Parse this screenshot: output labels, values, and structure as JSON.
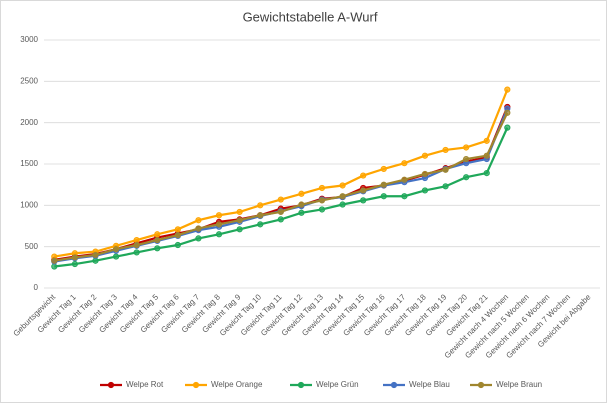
{
  "chart_data": {
    "type": "line",
    "title": "Gewichtstabelle A-Wurf",
    "categories": [
      "Geburtsgewicht",
      "Gewicht Tag 1",
      "Gewicht Tag 2",
      "Gewicht Tag 3",
      "Gewicht Tag 4",
      "Gewicht Tag 5",
      "Gewicht Tag 6",
      "Gewicht Tag 7",
      "Gewicht Tag 8",
      "Gewicht Tag 9",
      "Gewicht Tag 10",
      "Gewicht Tag 11",
      "Gewicht Tag 12",
      "Gewicht Tag 13",
      "Gewicht Tag 14",
      "Gewicht Tag 15",
      "Gewicht Tag 16",
      "Gewicht Tag 17",
      "Gewicht Tag 18",
      "Gewicht Tag 19",
      "Gewicht Tag 20",
      "Gewicht Tag 21",
      "Gewicht nach 4 Wochen",
      "Gewicht nach 5 Wochen",
      "Gewicht nach 6 Wochen",
      "Gewicht nach 7 Wochen",
      "Gewicht bei Abgabe"
    ],
    "series": [
      {
        "name": "Welpe Rot",
        "color": "#c00000",
        "values": [
          340,
          380,
          410,
          470,
          540,
          610,
          660,
          710,
          800,
          830,
          880,
          960,
          1000,
          1080,
          1100,
          1210,
          1240,
          1300,
          1370,
          1450,
          1530,
          1580,
          2190,
          null,
          null,
          null,
          null
        ]
      },
      {
        "name": "Welpe Orange",
        "color": "#ffa500",
        "values": [
          380,
          420,
          440,
          510,
          580,
          650,
          710,
          820,
          880,
          920,
          1000,
          1070,
          1140,
          1210,
          1240,
          1360,
          1440,
          1510,
          1600,
          1670,
          1700,
          1780,
          2400,
          null,
          null,
          null,
          null
        ]
      },
      {
        "name": "Welpe Grün",
        "color": "#1fa85a",
        "values": [
          260,
          290,
          330,
          380,
          430,
          480,
          520,
          600,
          650,
          710,
          770,
          830,
          910,
          950,
          1010,
          1060,
          1110,
          1110,
          1180,
          1230,
          1340,
          1390,
          1940,
          null,
          null,
          null,
          null
        ]
      },
      {
        "name": "Welpe Blau",
        "color": "#4472c4",
        "values": [
          320,
          360,
          390,
          450,
          510,
          570,
          630,
          700,
          740,
          800,
          870,
          930,
          990,
          1070,
          1100,
          1170,
          1240,
          1280,
          1330,
          1440,
          1510,
          1560,
          2170,
          null,
          null,
          null,
          null
        ]
      },
      {
        "name": "Welpe Braun",
        "color": "#a0862e",
        "values": [
          330,
          370,
          400,
          470,
          520,
          580,
          640,
          720,
          770,
          820,
          880,
          920,
          1010,
          1060,
          1110,
          1180,
          1250,
          1310,
          1380,
          1430,
          1560,
          1600,
          2120,
          null,
          null,
          null,
          null
        ]
      }
    ],
    "ylim": [
      0,
      3000
    ],
    "yticks": [
      0,
      500,
      1000,
      1500,
      2000,
      2500,
      3000
    ],
    "grid": true,
    "legend": "bottom"
  }
}
